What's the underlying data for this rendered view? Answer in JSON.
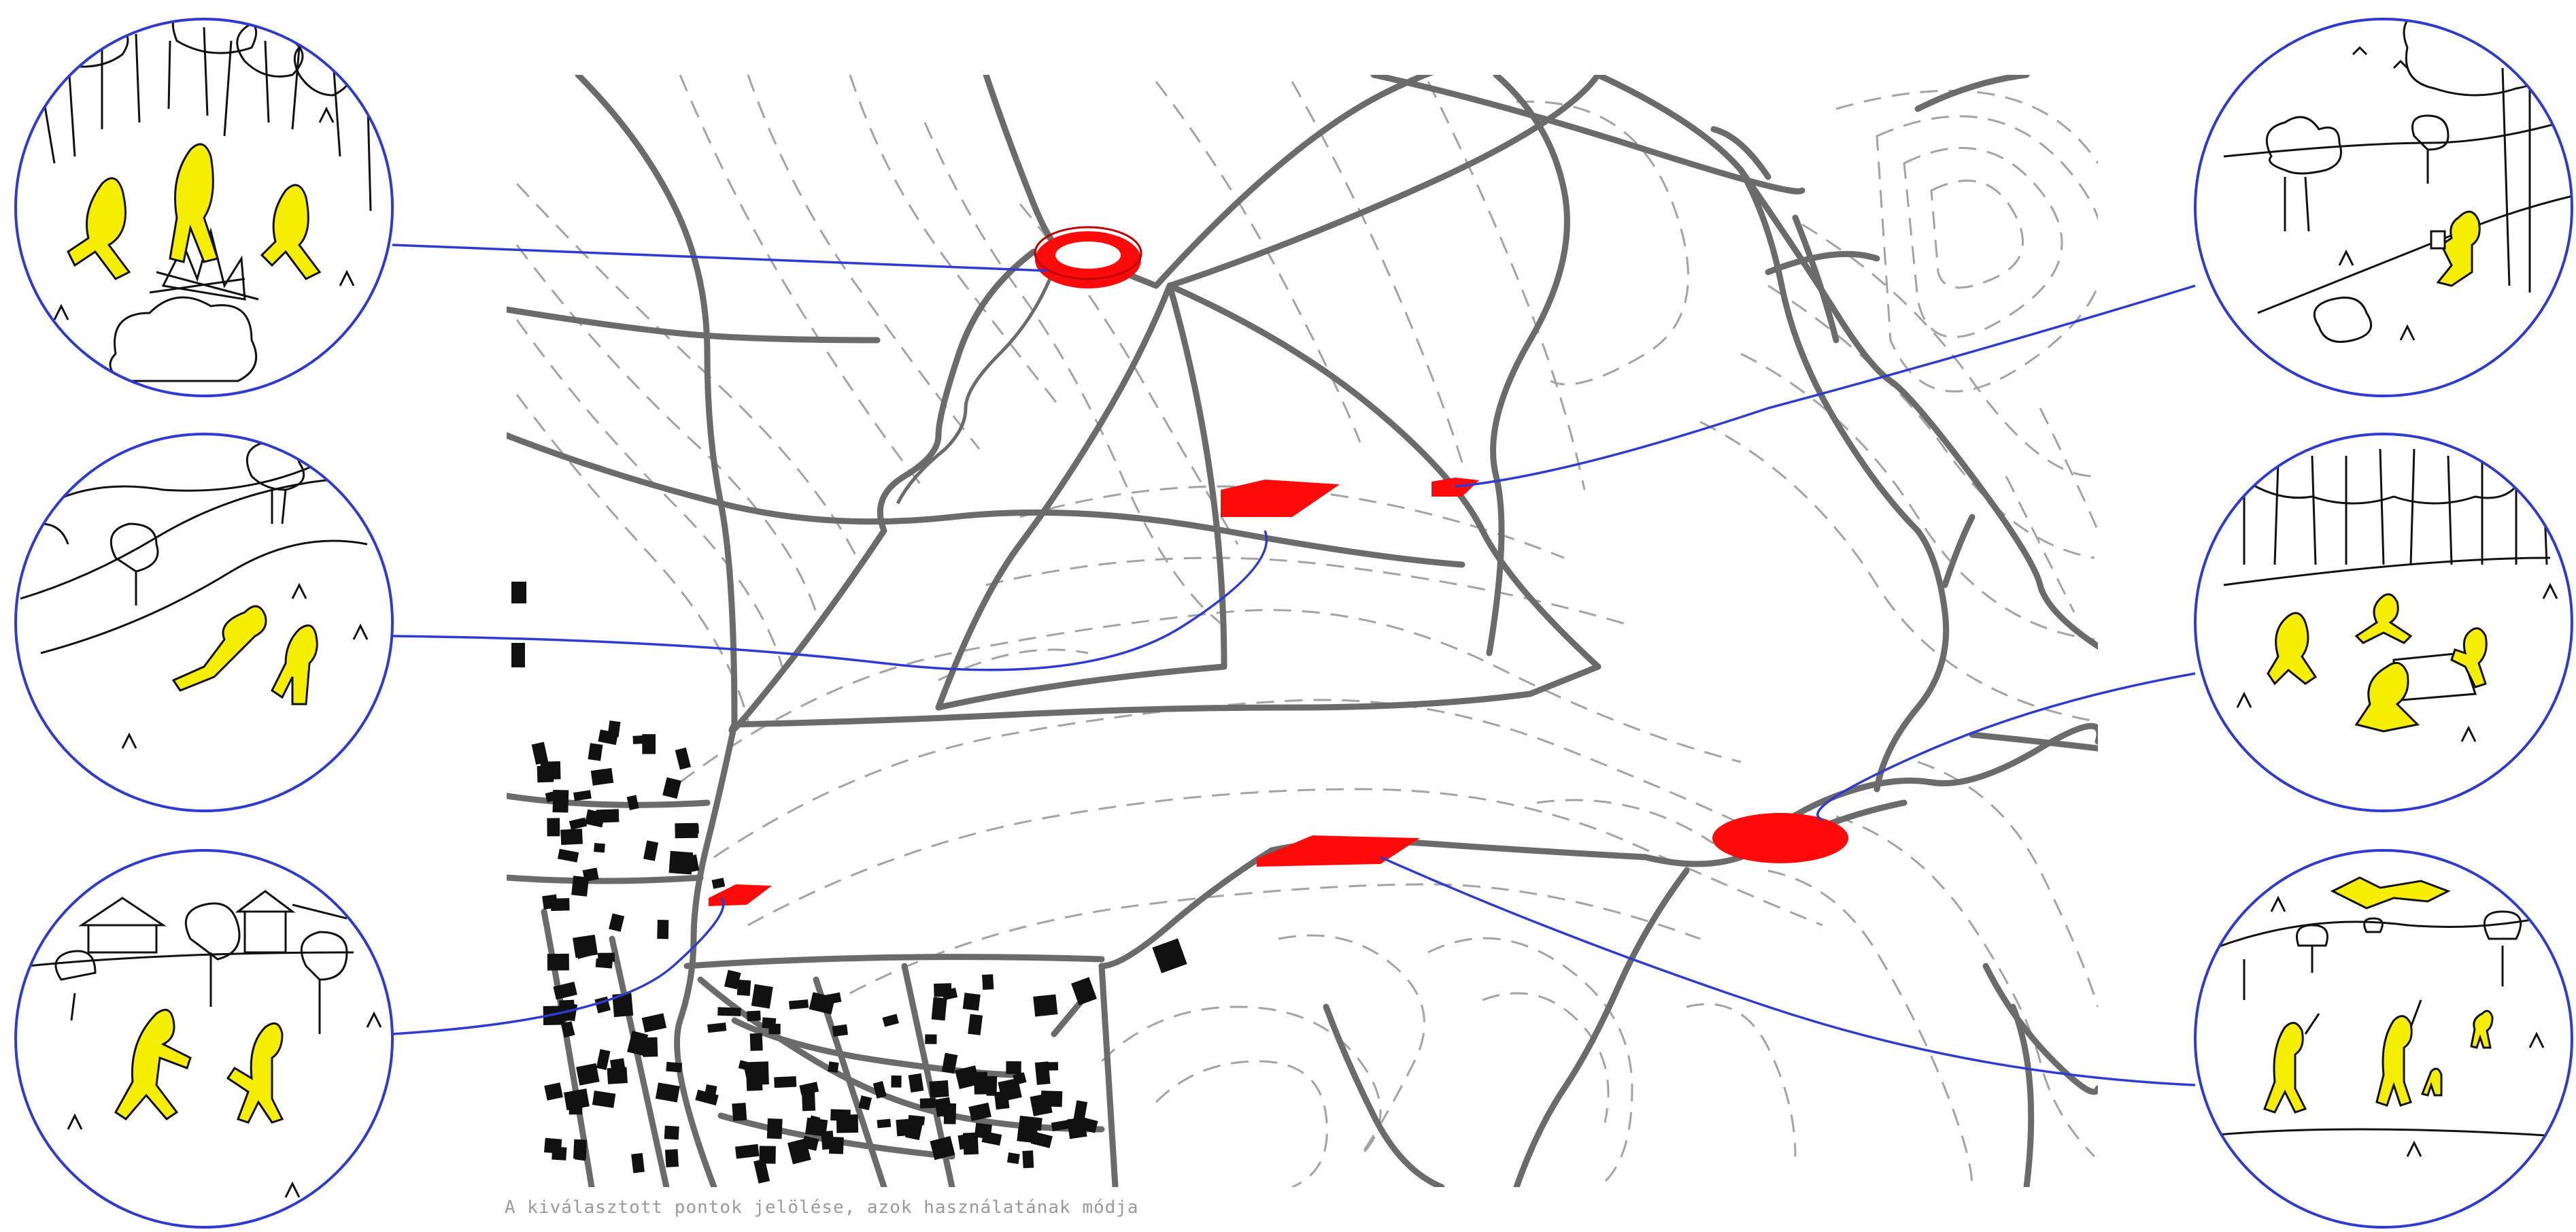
{
  "caption": "A kiválasztott pontok jelölése, azok használatának módja",
  "colors": {
    "background": "#ffffff",
    "road": "#666666",
    "contour": "#9a9a9a",
    "site_marker": "#ff0a0a",
    "connector": "#2f3bd0",
    "figure": "#f5ee00",
    "building": "#111111"
  },
  "legend_sites": [
    {
      "id": "campfire",
      "marker_shape": "ring",
      "activity": "campfire"
    },
    {
      "id": "reading",
      "marker_shape": "small-rect",
      "activity": "reading under tree"
    },
    {
      "id": "lying",
      "marker_shape": "rect",
      "activity": "resting on grass"
    },
    {
      "id": "picnic",
      "marker_shape": "ellipse",
      "activity": "picnic"
    },
    {
      "id": "playing",
      "marker_shape": "small-rect",
      "activity": "playing near houses"
    },
    {
      "id": "kite",
      "marker_shape": "rect",
      "activity": "kite flying"
    }
  ]
}
